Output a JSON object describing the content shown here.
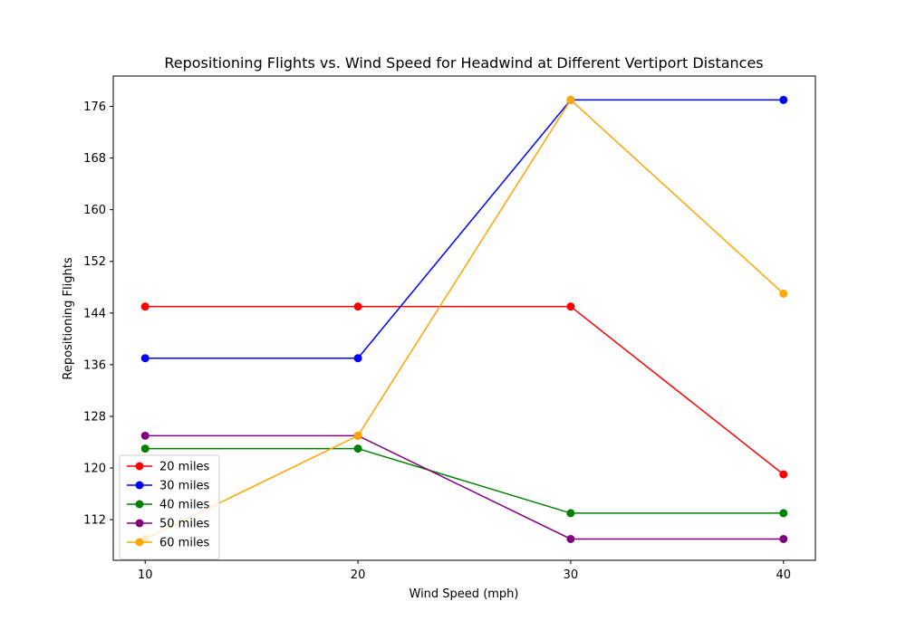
{
  "chart_data": {
    "type": "line",
    "title": "Repositioning Flights vs. Wind Speed for Headwind at Different Vertiport Distances",
    "xlabel": "Wind Speed (mph)",
    "ylabel": "Repositioning Flights",
    "x": [
      10,
      20,
      30,
      40
    ],
    "xticks": [
      "10",
      "20",
      "30",
      "40"
    ],
    "xlim": [
      8.5,
      41.5
    ],
    "yticks": [
      112,
      120,
      128,
      136,
      144,
      152,
      160,
      168,
      176
    ],
    "ylim": [
      105.7,
      180.7
    ],
    "grid": false,
    "legend_position": "lower-left",
    "series": [
      {
        "name": "20 miles",
        "color": "#ff0000",
        "values": [
          145,
          145,
          145,
          119
        ]
      },
      {
        "name": "30 miles",
        "color": "#0000ff",
        "values": [
          137,
          137,
          177,
          177
        ]
      },
      {
        "name": "40 miles",
        "color": "#008000",
        "values": [
          123,
          123,
          113,
          113
        ]
      },
      {
        "name": "50 miles",
        "color": "#800080",
        "values": [
          125,
          125,
          109,
          109
        ]
      },
      {
        "name": "60 miles",
        "color": "#ffa500",
        "values": [
          109,
          125,
          177,
          147
        ]
      }
    ]
  }
}
